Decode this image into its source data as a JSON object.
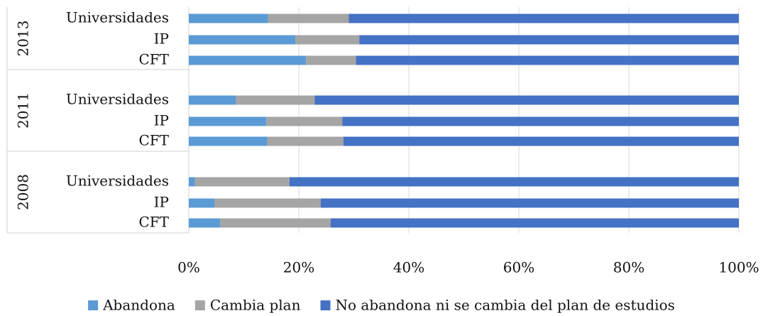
{
  "chart_data": {
    "type": "bar",
    "orientation": "horizontal",
    "stacked": true,
    "percent_stacked": true,
    "groups": [
      {
        "label": "2013",
        "categories": [
          "Universidades",
          "IP",
          "CFT"
        ]
      },
      {
        "label": "2011",
        "categories": [
          "Universidades",
          "IP",
          "CFT"
        ]
      },
      {
        "label": "2008",
        "categories": [
          "Universidades",
          "IP",
          "CFT"
        ]
      }
    ],
    "series": [
      {
        "name": "Abandona",
        "color": "#5b9bd5",
        "values": [
          14.4,
          19.4,
          21.3,
          8.6,
          14.1,
          14.3,
          1.1,
          4.7,
          5.7
        ]
      },
      {
        "name": "Cambia plan",
        "color": "#a5a5a5",
        "values": [
          14.7,
          11.6,
          9.1,
          14.3,
          13.8,
          13.8,
          17.2,
          19.3,
          20.1
        ]
      },
      {
        "name": "No abandona ni se cambia del plan de estudios",
        "color": "#4472c4",
        "values": [
          70.9,
          69.0,
          69.6,
          77.1,
          72.1,
          71.9,
          81.7,
          76.0,
          74.2
        ]
      }
    ],
    "xlim": [
      0,
      100
    ],
    "xticks": [
      "0%",
      "20%",
      "40%",
      "60%",
      "80%",
      "100%"
    ],
    "grid": true,
    "legend_position": "bottom"
  }
}
